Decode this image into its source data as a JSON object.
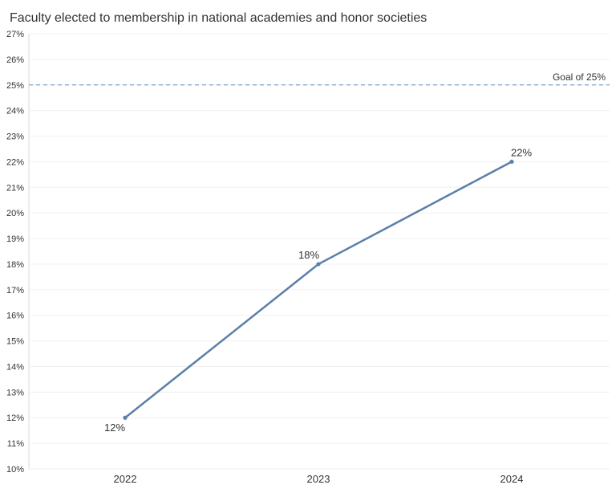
{
  "chart_data": {
    "type": "line",
    "title": "Faculty elected to membership in national academies and honor societies",
    "xlabel": "",
    "ylabel": "",
    "categories": [
      "2022",
      "2023",
      "2024"
    ],
    "series": [
      {
        "values": [
          12,
          18,
          22
        ],
        "color": "#5b7fa8"
      }
    ],
    "data_labels": [
      "12%",
      "18%",
      "22%"
    ],
    "y_ticks": [
      10,
      11,
      12,
      13,
      14,
      15,
      16,
      17,
      18,
      19,
      20,
      21,
      22,
      23,
      24,
      25,
      26,
      27
    ],
    "y_tick_suffix": "%",
    "ylim": [
      10,
      27
    ],
    "grid": true,
    "reference_line": {
      "value": 25,
      "label": "Goal of 25%",
      "color": "#7aa5cc",
      "style": "dashed"
    }
  }
}
